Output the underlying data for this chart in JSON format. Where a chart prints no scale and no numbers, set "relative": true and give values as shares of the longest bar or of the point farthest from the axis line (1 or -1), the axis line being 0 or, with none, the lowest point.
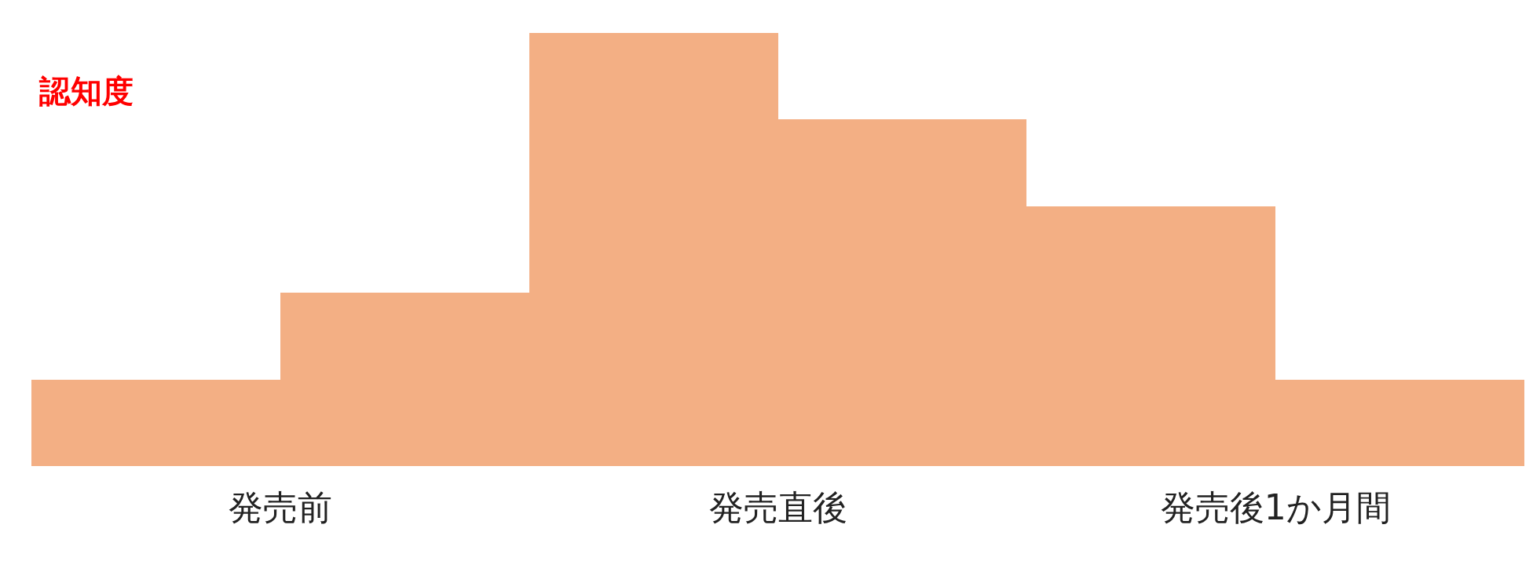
{
  "chart_data": {
    "type": "bar",
    "title": "認知度",
    "relative": true,
    "categories": [
      "発売前",
      "発売直後",
      "発売後1か月間"
    ],
    "series": [
      {
        "color": "#f3af84",
        "values": [
          0.2,
          1,
          0.6
        ]
      },
      {
        "color": "#f3af84",
        "values": [
          0.4,
          0.8,
          0.2
        ]
      }
    ]
  }
}
